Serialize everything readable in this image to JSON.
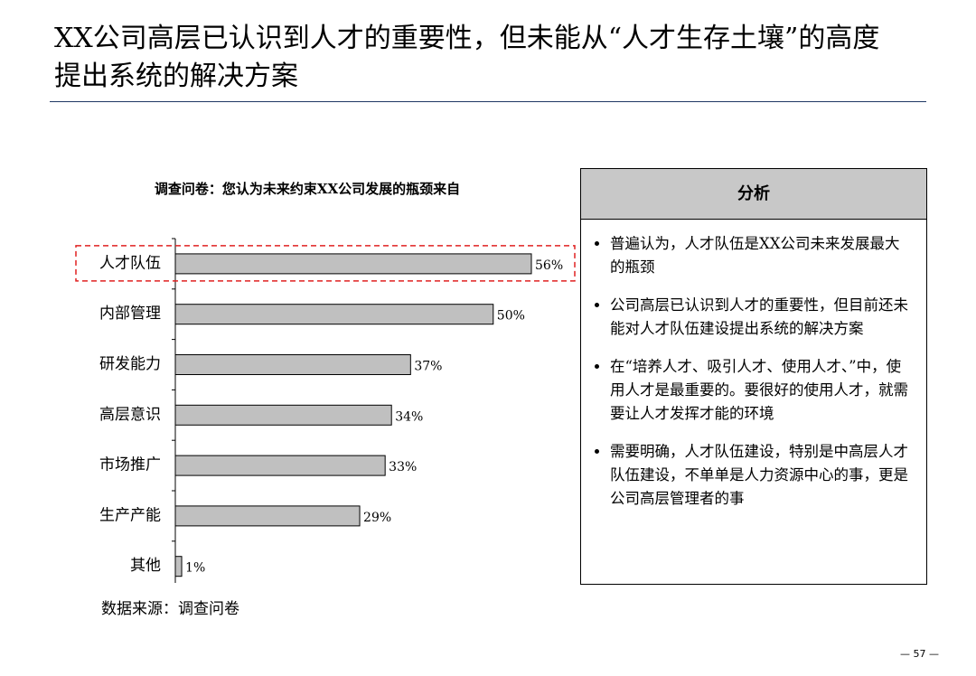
{
  "header": {
    "title": "XX公司高层已认识到人才的重要性，但未能从“人才生存土壤”的高度提出系统的解决方案"
  },
  "chart_data": {
    "type": "bar",
    "orientation": "horizontal",
    "title": "调查问卷：您认为未来约束XX公司发展的瓶颈来自",
    "categories": [
      "人才队伍",
      "内部管理",
      "研发能力",
      "高层意识",
      "市场推广",
      "生产产能",
      "其他"
    ],
    "values": [
      56,
      50,
      37,
      34,
      33,
      29,
      1
    ],
    "value_labels": [
      "56%",
      "50%",
      "37%",
      "34%",
      "33%",
      "29%",
      "1%"
    ],
    "color": "#c0c0c0",
    "highlight": "人才队伍"
  },
  "source": "数据来源：调查问卷",
  "analysis": {
    "title": "分析",
    "bullets": [
      "普遍认为，人才队伍是XX公司未来发展最大的瓶颈",
      "公司高层已认识到人才的重要性，但目前还未能对人才队伍建设提出系统的解决方案",
      "在“培养人才、吸引人才、使用人才、”中，使用人才是最重要的。要很好的使用人才，就需要让人才发挥才能的环境",
      "需要明确，人才队伍建设，特别是中高层人才队伍建设，不单单是人力资源中心的事，更是公司高层管理者的事"
    ]
  },
  "page_number": "— 57 —"
}
